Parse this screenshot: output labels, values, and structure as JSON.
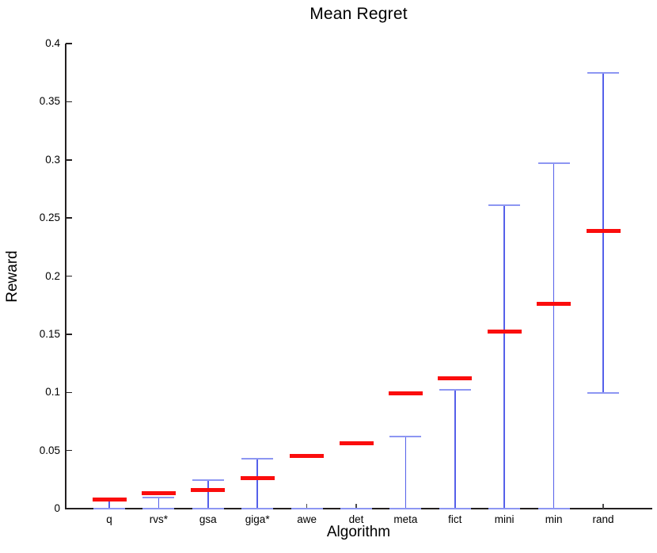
{
  "figure": {
    "title": "Mean Regret",
    "xlabel": "Algorithm",
    "ylabel": "Reward"
  },
  "chart_data": {
    "type": "errorbar",
    "title": "Mean Regret",
    "xlabel": "Algorithm",
    "ylabel": "Reward",
    "ylim": [
      0,
      0.4
    ],
    "yticks": [
      0,
      0.05,
      0.1,
      0.15,
      0.2,
      0.25,
      0.3,
      0.35,
      0.4
    ],
    "ytick_labels": [
      "0",
      "0.05",
      "0.1",
      "0.15",
      "0.2",
      "0.25",
      "0.3",
      "0.35",
      "0.4"
    ],
    "categories": [
      "q",
      "rvs*",
      "gsa",
      "giga*",
      "awe",
      "det",
      "meta",
      "fict",
      "mini",
      "min",
      "rand"
    ],
    "series": [
      {
        "name": "mean",
        "marker": "red-dash",
        "values": [
          0.008,
          0.013,
          0.016,
          0.026,
          0.045,
          0.056,
          0.099,
          0.112,
          0.152,
          0.176,
          0.239
        ]
      },
      {
        "name": "whisker-upper",
        "values": [
          0.008,
          0.0095,
          0.0245,
          0.0427,
          0,
          0,
          0.062,
          0.102,
          0.261,
          0.297,
          0.375
        ]
      },
      {
        "name": "whisker-lower",
        "values": [
          0,
          0,
          0,
          0,
          0,
          0,
          0,
          0,
          0,
          0,
          0.0995
        ]
      }
    ],
    "colors": {
      "mean": "#fb0d0d",
      "whisker_line": "#5560ea",
      "whisker_cap": "#8d96f2",
      "axis": "#231f20"
    },
    "grid": false,
    "legend": "none"
  }
}
